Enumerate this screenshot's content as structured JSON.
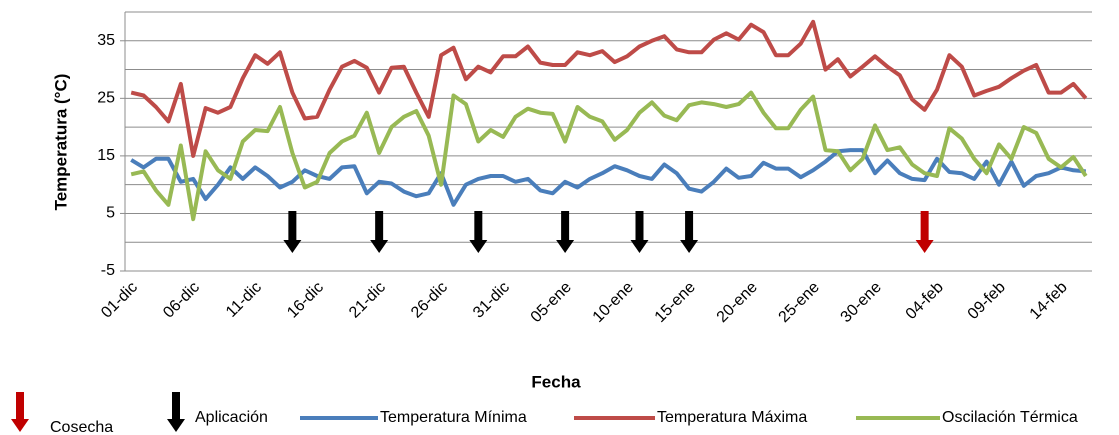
{
  "chart_data": {
    "type": "line",
    "y_label": "Temperatura (°C)",
    "x_label": "Fecha",
    "categories": [
      "01-dic",
      null,
      null,
      null,
      null,
      "06-dic",
      null,
      null,
      null,
      null,
      "11-dic",
      null,
      null,
      null,
      null,
      "16-dic",
      null,
      null,
      null,
      null,
      "21-dic",
      null,
      null,
      null,
      null,
      "26-dic",
      null,
      null,
      null,
      null,
      "31-dic",
      null,
      null,
      null,
      null,
      "05-ene",
      null,
      null,
      null,
      null,
      "10-ene",
      null,
      null,
      null,
      null,
      "15-ene",
      null,
      null,
      null,
      null,
      "20-ene",
      null,
      null,
      null,
      null,
      "25-ene",
      null,
      null,
      null,
      null,
      "30-ene",
      null,
      null,
      null,
      null,
      "04-feb",
      null,
      null,
      null,
      null,
      "09-feb",
      null,
      null,
      null,
      null,
      "14-feb",
      null,
      null
    ],
    "series": [
      {
        "name": "Temperatura Mínima",
        "color": "#4a7ebb",
        "values": [
          14.3,
          13,
          14.5,
          14.5,
          10.5,
          11,
          7.5,
          10,
          13,
          11,
          13,
          11.5,
          9.5,
          10.5,
          12.5,
          11.5,
          11,
          13,
          13.2,
          8.5,
          10.5,
          10.2,
          8.8,
          8,
          8.5,
          12,
          6.5,
          10,
          11,
          11.5,
          11.5,
          10.5,
          11,
          9,
          8.5,
          10.5,
          9.5,
          11,
          12,
          13.2,
          12.5,
          11.5,
          11,
          13.5,
          12,
          9.3,
          8.8,
          10.5,
          12.8,
          11.2,
          11.5,
          13.8,
          12.8,
          12.8,
          11.3,
          12.5,
          14,
          15.8,
          16,
          16,
          12,
          14.2,
          12,
          11,
          10.8,
          14.5,
          12.2,
          12,
          11,
          14,
          10,
          14,
          9.8,
          11.5,
          12,
          13,
          12.5,
          12.3
        ]
      },
      {
        "name": "Temperatura Máxima",
        "color": "#be4b48",
        "values": [
          26,
          25.5,
          23.5,
          21,
          27.5,
          15,
          23.3,
          22.5,
          23.5,
          28.5,
          32.5,
          31,
          33,
          26,
          21.5,
          21.8,
          26.5,
          30.5,
          31.5,
          30.3,
          26,
          30.3,
          30.5,
          26,
          21.8,
          32.5,
          33.8,
          28.3,
          30.5,
          29.5,
          32.3,
          32.3,
          34,
          31.2,
          30.8,
          30.8,
          33,
          32.5,
          33.2,
          31.3,
          32.3,
          34,
          35,
          35.8,
          33.5,
          33,
          33,
          35.2,
          36.3,
          35.2,
          37.8,
          36.5,
          32.5,
          32.5,
          34.5,
          38.3,
          30,
          31.8,
          28.8,
          30.5,
          32.3,
          30.5,
          29,
          24.8,
          23,
          26.5,
          32.5,
          30.5,
          25.5,
          26.3,
          27,
          28.5,
          29.8,
          30.8,
          26,
          26,
          27.5,
          25
        ]
      },
      {
        "name": "Oscilación Térmica",
        "color": "#98b954",
        "values": [
          11.8,
          12.3,
          9,
          6.5,
          16.8,
          4,
          15.8,
          12.5,
          11,
          17.5,
          19.5,
          19.3,
          23.5,
          15.5,
          9.5,
          10.5,
          15.5,
          17.5,
          18.5,
          22.5,
          15.5,
          20,
          21.8,
          22.8,
          18.5,
          10,
          25.5,
          24,
          17.5,
          19.5,
          18.3,
          21.8,
          23.2,
          22.5,
          22.3,
          17.5,
          23.5,
          21.8,
          21,
          17.8,
          19.5,
          22.5,
          24.3,
          22,
          21.2,
          23.8,
          24.3,
          24,
          23.5,
          24,
          26,
          22.5,
          19.8,
          19.8,
          23,
          25.3,
          16,
          15.8,
          12.5,
          14.5,
          20.3,
          16,
          16.5,
          13.5,
          12,
          11.5,
          19.8,
          18,
          14.5,
          12,
          17,
          14.5,
          20,
          19,
          14.5,
          13,
          14.8,
          11.5
        ]
      }
    ],
    "events": [
      {
        "name": "Cosecha",
        "color": "#c00000",
        "indices": [
          64
        ]
      },
      {
        "name": "Aplicación",
        "color": "#000000",
        "indices": [
          13,
          20,
          28,
          35,
          41,
          45
        ]
      }
    ],
    "ylim": [
      -5,
      40
    ],
    "yticks": [
      -5,
      5,
      15,
      25,
      35
    ],
    "yminor": [
      0,
      10,
      20,
      30,
      40
    ],
    "grid": true,
    "legend": "bottom"
  }
}
